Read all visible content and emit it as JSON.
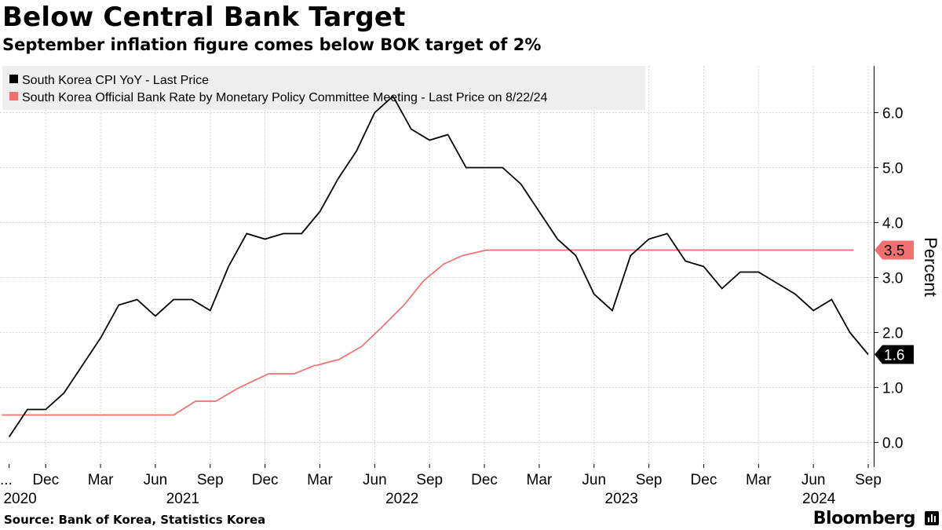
{
  "title": "Below Central Bank Target",
  "subtitle": "September inflation figure comes below BOK target of 2%",
  "source": "Source: Bank of Korea, Statistics Korea",
  "brand": "Bloomberg",
  "colors": {
    "cpi": "#000000",
    "rate": "#f07070",
    "grid": "#d3d3d3",
    "legend_bg": "#eeeeee"
  },
  "chart_data": {
    "type": "line",
    "title": "Below Central Bank Target",
    "subtitle": "September inflation figure comes below BOK target of 2%",
    "xlabel": "",
    "ylabel": "Percent",
    "ylim": [
      -0.45,
      6.85
    ],
    "xlim": [
      9.5,
      57.3
    ],
    "yticks": [
      0.0,
      1.0,
      2.0,
      3.0,
      4.0,
      5.0,
      6.0
    ],
    "ytick_labels": [
      "0.0",
      "1.0",
      "2.0",
      "3.0",
      "4.0",
      "5.0",
      "6.0"
    ],
    "grid": true,
    "legend_position": "top-left",
    "x_month_ticks": [
      {
        "m": 10,
        "label": "..."
      },
      {
        "m": 12,
        "label": "Dec"
      },
      {
        "m": 15,
        "label": "Mar"
      },
      {
        "m": 18,
        "label": "Jun"
      },
      {
        "m": 21,
        "label": "Sep"
      },
      {
        "m": 24,
        "label": "Dec"
      },
      {
        "m": 27,
        "label": "Mar"
      },
      {
        "m": 30,
        "label": "Jun"
      },
      {
        "m": 33,
        "label": "Sep"
      },
      {
        "m": 36,
        "label": "Dec"
      },
      {
        "m": 39,
        "label": "Mar"
      },
      {
        "m": 42,
        "label": "Jun"
      },
      {
        "m": 45,
        "label": "Sep"
      },
      {
        "m": 48,
        "label": "Dec"
      },
      {
        "m": 51,
        "label": "Mar"
      },
      {
        "m": 54,
        "label": "Jun"
      },
      {
        "m": 57,
        "label": "Sep"
      }
    ],
    "x_year_labels": [
      {
        "m": 10.6,
        "label": "2020"
      },
      {
        "m": 19.5,
        "label": "2021"
      },
      {
        "m": 31.5,
        "label": "2022"
      },
      {
        "m": 43.5,
        "label": "2023"
      },
      {
        "m": 54.3,
        "label": "2024"
      }
    ],
    "series": [
      {
        "name": "South Korea CPI YoY - Last Price",
        "color": "#000000",
        "last_value_label": "1.6",
        "x": [
          10,
          11,
          12,
          13,
          14,
          15,
          16,
          17,
          18,
          19,
          20,
          21,
          22,
          23,
          24,
          25,
          26,
          27,
          28,
          29,
          30,
          31,
          32,
          33,
          34,
          35,
          36,
          37,
          38,
          39,
          40,
          41,
          42,
          43,
          44,
          45,
          46,
          47,
          48,
          49,
          50,
          51,
          52,
          53,
          54,
          55,
          56,
          57
        ],
        "values": [
          0.1,
          0.6,
          0.6,
          0.9,
          1.4,
          1.9,
          2.5,
          2.6,
          2.3,
          2.6,
          2.6,
          2.4,
          3.2,
          3.8,
          3.7,
          3.8,
          3.8,
          4.2,
          4.8,
          5.3,
          6.0,
          6.3,
          5.7,
          5.5,
          5.6,
          5.0,
          5.0,
          5.0,
          4.7,
          4.2,
          3.7,
          3.4,
          2.7,
          2.4,
          3.4,
          3.7,
          3.8,
          3.3,
          3.2,
          2.8,
          3.1,
          3.1,
          2.9,
          2.7,
          2.4,
          2.6,
          2.0,
          1.6
        ]
      },
      {
        "name": "South Korea Official Bank Rate by Monetary Policy Committee Meeting - Last Price on 8/22/24",
        "color": "#f07070",
        "last_value_label": "3.5",
        "x": [
          9.6,
          19.0,
          20.2,
          21.3,
          22.6,
          24.2,
          25.5,
          25.6,
          26.7,
          26.8,
          27.9,
          28.0,
          29.3,
          30.4,
          31.6,
          32.7,
          33.8,
          34.8,
          36.1,
          56.2
        ],
        "values": [
          0.5,
          0.5,
          0.75,
          0.75,
          1.0,
          1.25,
          1.25,
          1.25,
          1.4,
          1.4,
          1.5,
          1.5,
          1.75,
          2.1,
          2.5,
          2.95,
          3.25,
          3.4,
          3.5,
          3.5
        ]
      }
    ],
    "last_value_badges": [
      {
        "series": 1,
        "value": 3.5,
        "label": "3.5"
      },
      {
        "series": 0,
        "value": 1.6,
        "label": "1.6"
      }
    ]
  }
}
